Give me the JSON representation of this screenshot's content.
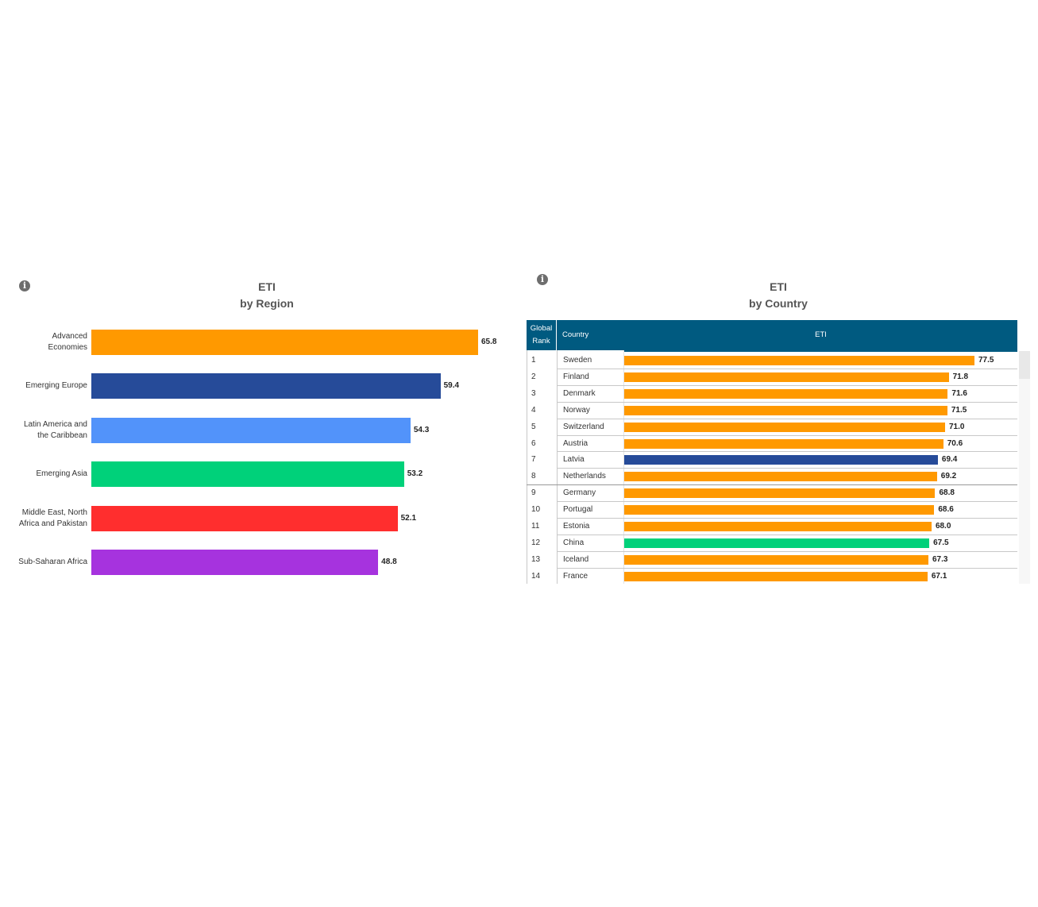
{
  "region": {
    "info_icon": "info-icon",
    "title_line1": "ETI",
    "title_line2": "by Region"
  },
  "country": {
    "info_icon": "info-icon",
    "title_line1": "ETI",
    "title_line2": "by Country",
    "header_rank_line1": "Global",
    "header_rank_line2": "Rank",
    "header_country": "Country",
    "header_eti": "ETI"
  },
  "colors": {
    "advanced": "#FF9900",
    "emerging_europe": "#264B99",
    "latin_america": "#5293FA",
    "emerging_asia": "#00D17A",
    "mena": "#FF2E2E",
    "ssa": "#A633DE",
    "header": "#005A80"
  },
  "chart_data": [
    {
      "type": "bar",
      "orientation": "horizontal",
      "title": "ETI by Region",
      "categories": [
        [
          "Advanced",
          "Economies"
        ],
        [
          "Emerging Europe"
        ],
        [
          "Latin America and",
          "the Caribbean"
        ],
        [
          "Emerging Asia"
        ],
        [
          "Middle East, North",
          "Africa and Pakistan"
        ],
        [
          "Sub-Saharan Africa"
        ]
      ],
      "values": [
        65.8,
        59.4,
        54.3,
        53.2,
        52.1,
        48.8
      ],
      "value_labels": [
        "65.8",
        "59.4",
        "54.3",
        "53.2",
        "52.1",
        "48.8"
      ],
      "colors": [
        "#FF9900",
        "#264B99",
        "#5293FA",
        "#00D17A",
        "#FF2E2E",
        "#A633DE"
      ],
      "xlim": [
        0,
        70
      ]
    },
    {
      "type": "table",
      "title": "ETI by Country",
      "columns": [
        "Global Rank",
        "Country",
        "ETI"
      ],
      "rows": [
        {
          "rank": "1",
          "country": "Sweden",
          "eti": 77.5,
          "label": "77.5",
          "color": "#FF9900"
        },
        {
          "rank": "2",
          "country": "Finland",
          "eti": 71.8,
          "label": "71.8",
          "color": "#FF9900"
        },
        {
          "rank": "3",
          "country": "Denmark",
          "eti": 71.6,
          "label": "71.6",
          "color": "#FF9900"
        },
        {
          "rank": "4",
          "country": "Norway",
          "eti": 71.5,
          "label": "71.5",
          "color": "#FF9900"
        },
        {
          "rank": "5",
          "country": "Switzerland",
          "eti": 71.0,
          "label": "71.0",
          "color": "#FF9900"
        },
        {
          "rank": "6",
          "country": "Austria",
          "eti": 70.6,
          "label": "70.6",
          "color": "#FF9900"
        },
        {
          "rank": "7",
          "country": "Latvia",
          "eti": 69.4,
          "label": "69.4",
          "color": "#264B99"
        },
        {
          "rank": "8",
          "country": "Netherlands",
          "eti": 69.2,
          "label": "69.2",
          "color": "#FF9900"
        },
        {
          "rank": "9",
          "country": "Germany",
          "eti": 68.8,
          "label": "68.8",
          "color": "#FF9900"
        },
        {
          "rank": "10",
          "country": "Portugal",
          "eti": 68.6,
          "label": "68.6",
          "color": "#FF9900"
        },
        {
          "rank": "11",
          "country": "Estonia",
          "eti": 68.0,
          "label": "68.0",
          "color": "#FF9900"
        },
        {
          "rank": "12",
          "country": "China",
          "eti": 67.5,
          "label": "67.5",
          "color": "#00D17A"
        },
        {
          "rank": "13",
          "country": "Iceland",
          "eti": 67.3,
          "label": "67.3",
          "color": "#FF9900"
        },
        {
          "rank": "14",
          "country": "France",
          "eti": 67.1,
          "label": "67.1",
          "color": "#FF9900"
        }
      ],
      "xlim": [
        0,
        90
      ]
    }
  ]
}
